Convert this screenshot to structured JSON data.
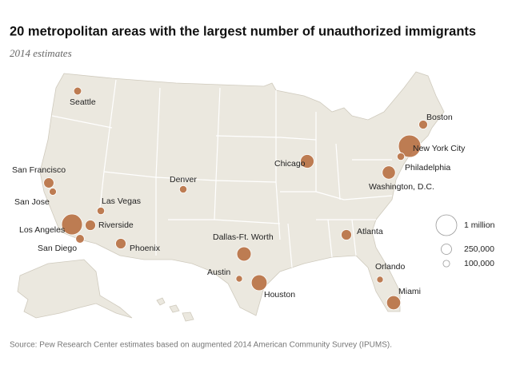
{
  "title": "20 metropolitan areas with the largest number of unauthorized immigrants",
  "subtitle": "2014 estimates",
  "cities": [
    {
      "name": "New York City",
      "value": 1150000
    },
    {
      "name": "Los Angeles",
      "value": 1000000
    },
    {
      "name": "Houston",
      "value": 575000
    },
    {
      "name": "Dallas-Ft. Worth",
      "value": 475000
    },
    {
      "name": "Miami",
      "value": 450000
    },
    {
      "name": "Chicago",
      "value": 425000
    },
    {
      "name": "Washington, D.C.",
      "value": 400000
    },
    {
      "name": "Atlanta",
      "value": 250000
    },
    {
      "name": "Riverside",
      "value": 250000
    },
    {
      "name": "Phoenix",
      "value": 250000
    },
    {
      "name": "San Francisco",
      "value": 240000
    },
    {
      "name": "Boston",
      "value": 180000
    },
    {
      "name": "San Diego",
      "value": 170000
    },
    {
      "name": "Seattle",
      "value": 140000
    },
    {
      "name": "Las Vegas",
      "value": 130000
    },
    {
      "name": "Philadelphia",
      "value": 130000
    },
    {
      "name": "Denver",
      "value": 130000
    },
    {
      "name": "San Jose",
      "value": 120000
    },
    {
      "name": "Orlando",
      "value": 100000
    },
    {
      "name": "Austin",
      "value": 100000
    }
  ],
  "legend": [
    {
      "value": 1000000,
      "label": "1 million"
    },
    {
      "value": 250000,
      "label": "250,000"
    },
    {
      "value": 100000,
      "label": "100,000"
    }
  ],
  "source": "Source: Pew Research Center estimates based on augmented 2014 American Community Survey (IPUMS)."
}
